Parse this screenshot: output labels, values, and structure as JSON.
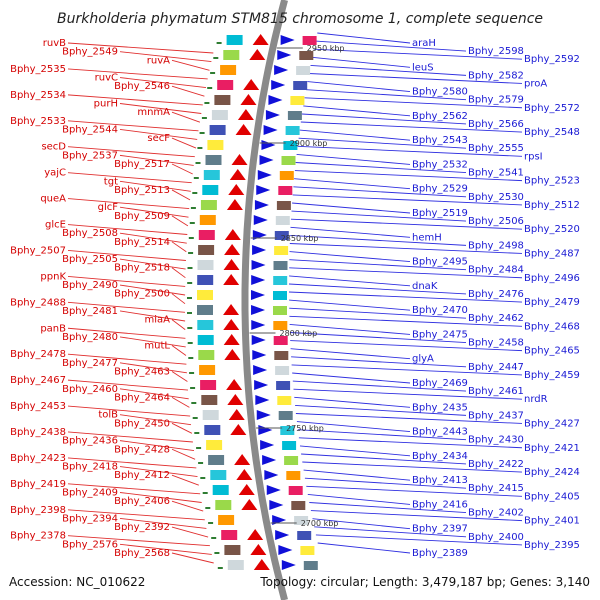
{
  "title": "Burkholderia phymatum STM815 chromosome 1, complete sequence",
  "accession": "Accession: NC_010622",
  "topology": "Topology: circular; Length: 3,479,187 bp; Genes: 3,140",
  "colors": {
    "left_label": "#d40000",
    "right_label": "#1a1ad4",
    "backbone": "#8a8a8a",
    "reverse_strand": "#e00000",
    "forward_strand": "#1010d8",
    "leader_left": "#e03030",
    "leader_right": "#3030e0"
  },
  "kbp_marks": [
    "2950 kbp",
    "2900 kbp",
    "2850 kbp",
    "2800 kbp",
    "2750 kbp",
    "2700 kbp"
  ],
  "left_genes": [
    "ruvB",
    "Bphy_2549",
    "ruvA",
    "Bphy_2535",
    "ruvC",
    "Bphy_2546",
    "Bphy_2534",
    "purH",
    "mnmA",
    "Bphy_2533",
    "Bphy_2544",
    "secF",
    "secD",
    "Bphy_2537",
    "Bphy_2517",
    "yajC",
    "tgt",
    "Bphy_2513",
    "queA",
    "glcF",
    "Bphy_2509",
    "glcE",
    "Bphy_2508",
    "Bphy_2514",
    "Bphy_2507",
    "Bphy_2505",
    "Bphy_2518",
    "ppnK",
    "Bphy_2490",
    "Bphy_2500",
    "Bphy_2488",
    "Bphy_2481",
    "miaA",
    "panB",
    "Bphy_2480",
    "mutL",
    "Bphy_2478",
    "Bphy_2477",
    "Bphy_2463",
    "Bphy_2467",
    "Bphy_2460",
    "Bphy_2464",
    "Bphy_2453",
    "tolB",
    "Bphy_2450",
    "Bphy_2438",
    "Bphy_2436",
    "Bphy_2428",
    "Bphy_2423",
    "Bphy_2418",
    "Bphy_2412",
    "Bphy_2419",
    "Bphy_2409",
    "Bphy_2406",
    "Bphy_2398",
    "Bphy_2394",
    "Bphy_2392",
    "Bphy_2378",
    "Bphy_2576",
    "Bphy_2568"
  ],
  "right_genes": [
    "araH",
    "Bphy_2598",
    "Bphy_2592",
    "leuS",
    "Bphy_2582",
    "proA",
    "Bphy_2580",
    "Bphy_2579",
    "Bphy_2572",
    "Bphy_2562",
    "Bphy_2566",
    "Bphy_2548",
    "Bphy_2543",
    "Bphy_2555",
    "rpsI",
    "Bphy_2532",
    "Bphy_2541",
    "Bphy_2523",
    "Bphy_2529",
    "Bphy_2530",
    "Bphy_2512",
    "Bphy_2519",
    "Bphy_2506",
    "Bphy_2520",
    "hemH",
    "Bphy_2498",
    "Bphy_2487",
    "Bphy_2495",
    "Bphy_2484",
    "Bphy_2496",
    "dnaK",
    "Bphy_2476",
    "Bphy_2479",
    "Bphy_2470",
    "Bphy_2462",
    "Bphy_2468",
    "Bphy_2475",
    "Bphy_2458",
    "Bphy_2465",
    "glyA",
    "Bphy_2447",
    "Bphy_2459",
    "Bphy_2469",
    "Bphy_2461",
    "nrdR",
    "Bphy_2435",
    "Bphy_2437",
    "Bphy_2427",
    "Bphy_2443",
    "Bphy_2430",
    "Bphy_2421",
    "Bphy_2434",
    "Bphy_2422",
    "Bphy_2424",
    "Bphy_2413",
    "Bphy_2415",
    "Bphy_2405",
    "Bphy_2416",
    "Bphy_2402",
    "Bphy_2401",
    "Bphy_2397",
    "Bphy_2400",
    "Bphy_2395",
    "Bphy_2389"
  ]
}
